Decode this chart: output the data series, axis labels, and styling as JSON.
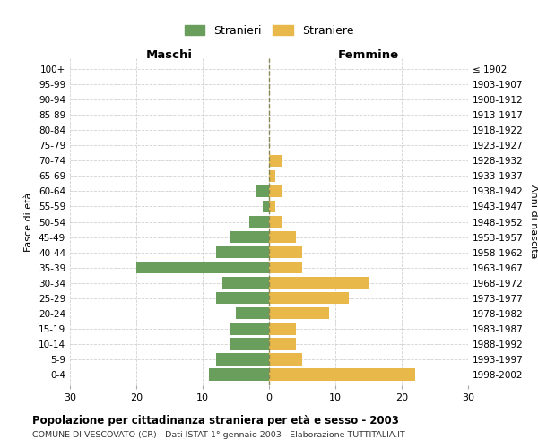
{
  "age_groups": [
    "0-4",
    "5-9",
    "10-14",
    "15-19",
    "20-24",
    "25-29",
    "30-34",
    "35-39",
    "40-44",
    "45-49",
    "50-54",
    "55-59",
    "60-64",
    "65-69",
    "70-74",
    "75-79",
    "80-84",
    "85-89",
    "90-94",
    "95-99",
    "100+"
  ],
  "birth_years": [
    "1998-2002",
    "1993-1997",
    "1988-1992",
    "1983-1987",
    "1978-1982",
    "1973-1977",
    "1968-1972",
    "1963-1967",
    "1958-1962",
    "1953-1957",
    "1948-1952",
    "1943-1947",
    "1938-1942",
    "1933-1937",
    "1928-1932",
    "1923-1927",
    "1918-1922",
    "1913-1917",
    "1908-1912",
    "1903-1907",
    "≤ 1902"
  ],
  "maschi": [
    9,
    8,
    6,
    6,
    5,
    8,
    7,
    20,
    8,
    6,
    3,
    1,
    2,
    0,
    0,
    0,
    0,
    0,
    0,
    0,
    0
  ],
  "femmine": [
    22,
    5,
    4,
    4,
    9,
    12,
    15,
    5,
    5,
    4,
    2,
    1,
    2,
    1,
    2,
    0,
    0,
    0,
    0,
    0,
    0
  ],
  "maschi_color": "#6a9e5c",
  "femmine_color": "#e8b84b",
  "title": "Popolazione per cittadinanza straniera per età e sesso - 2003",
  "subtitle": "COMUNE DI VESCOVATO (CR) - Dati ISTAT 1° gennaio 2003 - Elaborazione TUTTITALIA.IT",
  "xlabel_left": "Maschi",
  "xlabel_right": "Femmine",
  "ylabel_left": "Fasce di età",
  "ylabel_right": "Anni di nascita",
  "legend_stranieri": "Stranieri",
  "legend_straniere": "Straniere",
  "xlim": 30,
  "background_color": "#ffffff",
  "grid_color": "#cccccc"
}
